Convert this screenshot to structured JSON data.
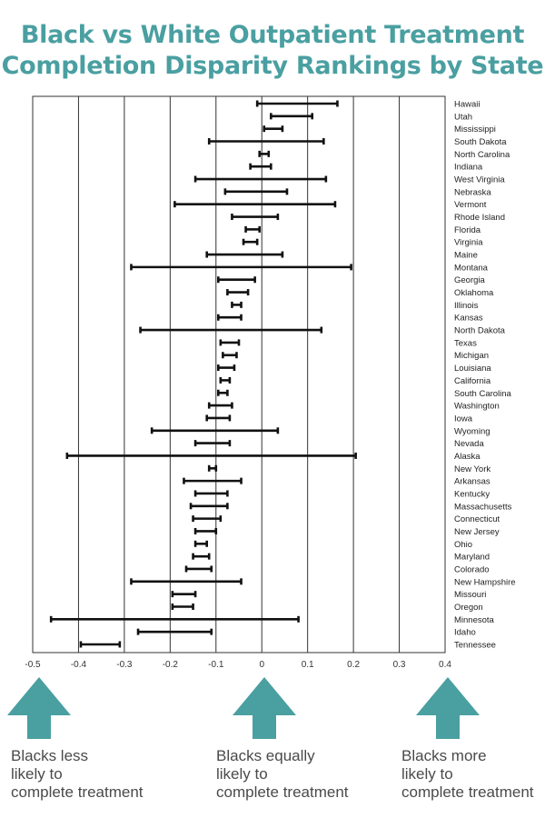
{
  "title": {
    "line1": "Black vs White Outpatient Treatment",
    "line2": "Completion Disparity Rankings by State"
  },
  "chart_data": {
    "type": "interval",
    "xlim": [
      -0.5,
      0.4
    ],
    "x_ticks": [
      "-0.5",
      "-0.4",
      "-0.3",
      "-0.2",
      "-0.1",
      "0",
      "0.1",
      "0.2",
      "0.3",
      "0.4"
    ],
    "grid": "vertical",
    "categories": [
      "Hawaii",
      "Utah",
      "Mississippi",
      "South Dakota",
      "North Carolina",
      "Indiana",
      "West Virginia",
      "Nebraska",
      "Vermont",
      "Rhode Island",
      "Florida",
      "Virginia",
      "Maine",
      "Montana",
      "Georgia",
      "Oklahoma",
      "Illinois",
      "Kansas",
      "North Dakota",
      "Texas",
      "Michigan",
      "Louisiana",
      "California",
      "South Carolina",
      "Washington",
      "Iowa",
      "Wyoming",
      "Nevada",
      "Alaska",
      "New York",
      "Arkansas",
      "Kentucky",
      "Massachusetts",
      "Connecticut",
      "New Jersey",
      "Ohio",
      "Maryland",
      "Colorado",
      "New Hampshire",
      "Missouri",
      "Oregon",
      "Minnesota",
      "Idaho",
      "Tennessee"
    ],
    "lower": [
      -0.01,
      0.02,
      0.005,
      -0.115,
      -0.005,
      -0.025,
      -0.145,
      -0.08,
      -0.19,
      -0.065,
      -0.035,
      -0.04,
      -0.12,
      -0.285,
      -0.095,
      -0.075,
      -0.065,
      -0.095,
      -0.265,
      -0.09,
      -0.085,
      -0.095,
      -0.09,
      -0.095,
      -0.115,
      -0.12,
      -0.24,
      -0.145,
      -0.425,
      -0.115,
      -0.17,
      -0.145,
      -0.155,
      -0.15,
      -0.145,
      -0.145,
      -0.15,
      -0.165,
      -0.285,
      -0.195,
      -0.195,
      -0.46,
      -0.27,
      -0.395
    ],
    "upper": [
      0.165,
      0.11,
      0.045,
      0.135,
      0.015,
      0.02,
      0.14,
      0.055,
      0.16,
      0.035,
      -0.005,
      -0.01,
      0.045,
      0.195,
      -0.015,
      -0.03,
      -0.045,
      -0.045,
      0.13,
      -0.05,
      -0.055,
      -0.06,
      -0.07,
      -0.075,
      -0.065,
      -0.07,
      0.035,
      -0.07,
      0.205,
      -0.1,
      -0.045,
      -0.075,
      -0.075,
      -0.09,
      -0.1,
      -0.12,
      -0.115,
      -0.11,
      -0.045,
      -0.145,
      -0.15,
      0.08,
      -0.11,
      -0.31
    ]
  },
  "arrows": [
    {
      "line1": "Blacks less",
      "line2": "likely to",
      "line3": "complete treatment"
    },
    {
      "line1": "Blacks equally",
      "line2": "likely to",
      "line3": "complete treatment"
    },
    {
      "line1": "Blacks more",
      "line2": "likely to",
      "line3": "complete treatment"
    }
  ],
  "colors": {
    "accent": "#4a9fa1",
    "bar": "#111111",
    "grid": "#222222",
    "text": "#4a4a4a"
  }
}
